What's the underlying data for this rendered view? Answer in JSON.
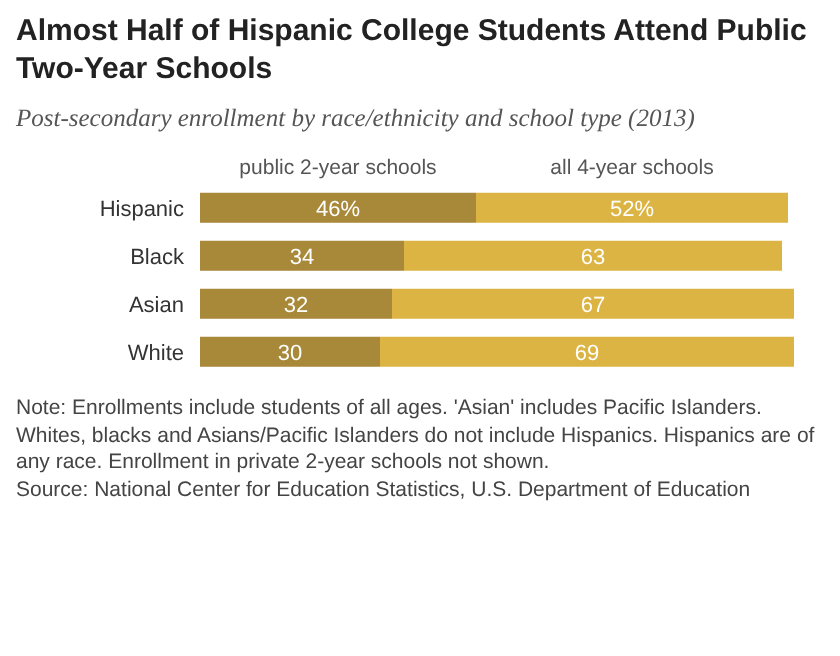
{
  "chart_data": {
    "type": "bar",
    "orientation": "horizontal",
    "stacked": true,
    "title": "Almost Half of Hispanic College Students Attend Public Two-Year Schools",
    "subtitle": "Post-secondary enrollment by race/ethnicity and school type (2013)",
    "categories": [
      "Hispanic",
      "Black",
      "Asian",
      "White"
    ],
    "series": [
      {
        "name": "public 2-year schools",
        "color": "#a8893a",
        "values": [
          46,
          34,
          32,
          30
        ],
        "value_labels": [
          "46%",
          "34",
          "32",
          "30"
        ]
      },
      {
        "name": "all 4-year schools",
        "color": "#dcb443",
        "values": [
          52,
          63,
          67,
          69
        ],
        "value_labels": [
          "52%",
          "63",
          "67",
          "69"
        ]
      }
    ],
    "xlim": [
      0,
      100
    ],
    "tick_labels": "y",
    "annotations": [
      "Note: Enrollments include students of all ages. 'Asian' includes Pacific Islanders. Whites, blacks and Asians/Pacific Islanders do not include Hispanics. Hispanics are of any race. Enrollment in private 2-year schools not shown.",
      "Source: National Center for Education Statistics, U.S. Department of Education"
    ]
  }
}
